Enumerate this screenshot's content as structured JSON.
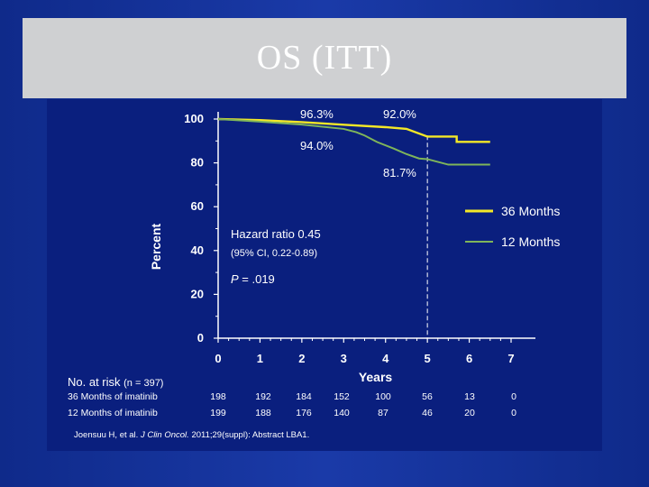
{
  "slide": {
    "title": "OS (ITT)"
  },
  "chart_data": {
    "type": "line",
    "xlabel": "Years",
    "ylabel": "Percent",
    "xlim": [
      0,
      7
    ],
    "ylim": [
      0,
      100
    ],
    "x_ticks": [
      "0",
      "1",
      "2",
      "3",
      "4",
      "5",
      "6",
      "7"
    ],
    "y_ticks": [
      "0",
      "20",
      "40",
      "60",
      "80",
      "100"
    ],
    "grid": false,
    "legend_position": "right",
    "series": [
      {
        "name": "36 Months",
        "color": "#f4e827",
        "points": [
          [
            0,
            100
          ],
          [
            1,
            99.5
          ],
          [
            2,
            98.6
          ],
          [
            3,
            97.4
          ],
          [
            4,
            96.3
          ],
          [
            4.5,
            95.5
          ],
          [
            5,
            92.0
          ],
          [
            5.7,
            92.0
          ],
          [
            5.7,
            89.6
          ],
          [
            6.5,
            89.6
          ]
        ]
      },
      {
        "name": "12 Months",
        "color": "#7fb55a",
        "points": [
          [
            0,
            100
          ],
          [
            1,
            98.8
          ],
          [
            2,
            97.5
          ],
          [
            3,
            95.5
          ],
          [
            3.3,
            94.0
          ],
          [
            3.5,
            92.5
          ],
          [
            3.8,
            89.5
          ],
          [
            4.2,
            86.5
          ],
          [
            4.5,
            84.0
          ],
          [
            4.8,
            82.0
          ],
          [
            5.0,
            81.7
          ],
          [
            5.5,
            79.2
          ],
          [
            6.5,
            79.2
          ]
        ]
      }
    ],
    "annotations": {
      "a1": "96.3%",
      "a2": "92.0%",
      "a3": "94.0%",
      "a4": "81.7%",
      "hazard": "Hazard ratio 0.45",
      "ci": "(95% CI, 0.22-0.89)",
      "p_label": "P",
      "p_value": " = .019"
    },
    "reference_line_x": 5
  },
  "risk_table": {
    "title": "No. at risk",
    "n_note": "(n = 397)",
    "rows": [
      {
        "label": "36 Months of imatinib",
        "values": [
          "198",
          "192",
          "184",
          "152",
          "100",
          "56",
          "13",
          "0"
        ]
      },
      {
        "label": "12 Months of imatinib",
        "values": [
          "199",
          "188",
          "176",
          "140",
          "87",
          "46",
          "20",
          "0"
        ]
      }
    ]
  },
  "citation": {
    "author": "Joensuu H, et al.",
    "journal": "J Clin Oncol.",
    "rest": "2011;29(suppl): Abstract LBA1."
  }
}
